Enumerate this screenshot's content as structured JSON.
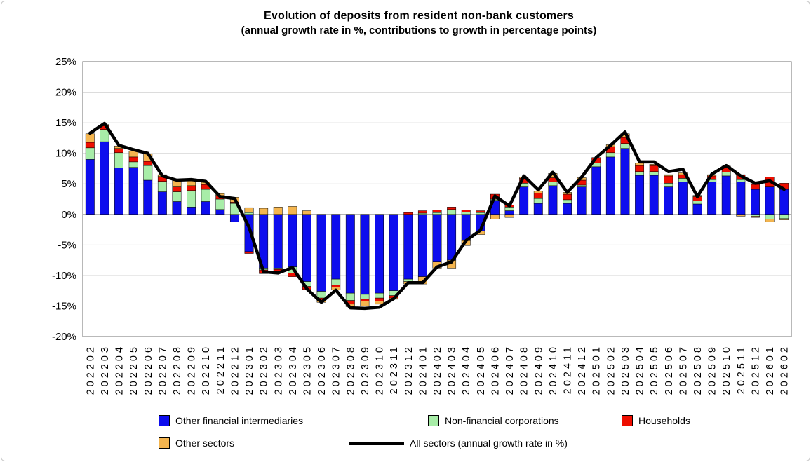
{
  "page": {
    "background": "#ffffff",
    "border_color": "#c9c9c9"
  },
  "chart_data": {
    "type": "bar",
    "stacked": true,
    "title": "Evolution of deposits from resident non-bank customers",
    "subtitle": "(annual growth rate in %, contributions to growth in percentage points)",
    "ylim": [
      -20,
      25
    ],
    "ytick_step": 5,
    "ytick_labels": [
      "25%",
      "20%",
      "15%",
      "10%",
      "5%",
      "0%",
      "-5%",
      "-10%",
      "-15%",
      "-20%"
    ],
    "grid": true,
    "legend_position": "bottom",
    "categories": [
      "202202",
      "202203",
      "202204",
      "202205",
      "202206",
      "202207",
      "202208",
      "202209",
      "202210",
      "202211",
      "202212",
      "202301",
      "202302",
      "202303",
      "202304",
      "202305",
      "202306",
      "202307",
      "202308",
      "202309",
      "202310",
      "202311",
      "202312",
      "202401",
      "202402",
      "202403",
      "202404",
      "202405",
      "202406",
      "202407",
      "202408",
      "202409",
      "202410",
      "202411",
      "202412",
      "202501",
      "202502",
      "202503",
      "202504",
      "202505",
      "202506",
      "202507",
      "202508",
      "202509",
      "202510",
      "202511",
      "202512",
      "202601",
      "202602"
    ],
    "series": [
      {
        "name": "Other financial intermediaries",
        "color": "#0D0DEE",
        "values": [
          9.0,
          11.9,
          7.6,
          7.7,
          5.6,
          3.7,
          2.1,
          1.2,
          2.1,
          0.8,
          -1.2,
          -6.1,
          -8.8,
          -8.8,
          -8.6,
          -11.0,
          -12.6,
          -10.6,
          -12.9,
          -13.1,
          -12.9,
          -12.5,
          -10.6,
          -10.2,
          -7.8,
          -7.5,
          -4.3,
          -2.7,
          2.3,
          0.6,
          4.5,
          1.8,
          4.7,
          1.8,
          4.5,
          7.8,
          9.4,
          10.8,
          6.4,
          6.4,
          4.5,
          5.3,
          1.7,
          5.3,
          6.3,
          5.3,
          4.1,
          4.5,
          4.1
        ]
      },
      {
        "name": "Non-financial corporations",
        "color": "#A8EDA8",
        "values": [
          1.9,
          2.0,
          2.5,
          0.9,
          2.4,
          1.7,
          1.6,
          2.7,
          2.0,
          1.7,
          1.8,
          0.3,
          -0.3,
          -0.2,
          -1.0,
          -0.8,
          -1.1,
          -1.0,
          -1.2,
          -0.8,
          -0.8,
          -0.8,
          -0.4,
          0.2,
          0.3,
          0.8,
          0.4,
          0.3,
          0.2,
          0.6,
          0.6,
          0.8,
          0.6,
          0.6,
          0.3,
          0.6,
          0.7,
          0.8,
          0.6,
          0.6,
          0.6,
          0.6,
          0.5,
          0.4,
          0.6,
          0.4,
          -0.3,
          -0.8,
          -0.7
        ]
      },
      {
        "name": "Households",
        "color": "#EE0E00",
        "values": [
          0.9,
          0.6,
          0.7,
          0.8,
          0.7,
          0.8,
          0.8,
          0.8,
          0.8,
          0.6,
          0.2,
          -0.3,
          -0.6,
          -0.6,
          -0.6,
          -0.5,
          -0.4,
          -0.3,
          -0.6,
          -0.3,
          -0.5,
          -0.4,
          0.3,
          0.4,
          0.4,
          0.4,
          0.3,
          0.3,
          0.8,
          0.3,
          0.8,
          0.9,
          0.7,
          0.9,
          0.8,
          0.9,
          1.0,
          1.0,
          1.0,
          1.0,
          1.2,
          0.6,
          0.7,
          0.6,
          0.8,
          0.8,
          0.8,
          1.6,
          1.0
        ]
      },
      {
        "name": "Other sectors",
        "color": "#F4B54F",
        "values": [
          1.4,
          0.2,
          0.4,
          1.0,
          1.2,
          0.3,
          1.2,
          0.8,
          0.4,
          0.3,
          0.8,
          0.8,
          1.0,
          1.2,
          1.3,
          0.6,
          -0.3,
          -0.5,
          -0.4,
          -0.8,
          -0.5,
          -0.2,
          -0.4,
          -1.2,
          -1.0,
          -1.3,
          -0.8,
          -0.6,
          -0.8,
          -0.5,
          0.2,
          0.3,
          0.7,
          0.3,
          0.4,
          0.0,
          0.3,
          0.6,
          0.4,
          0.2,
          0.2,
          0.3,
          0.2,
          0.2,
          0.2,
          -0.3,
          -0.2,
          -0.4,
          -0.2
        ]
      }
    ],
    "line": {
      "name": "All sectors (annual growth rate in %)",
      "color": "#000000",
      "values": [
        13.3,
        14.9,
        11.3,
        10.6,
        10.0,
        6.3,
        5.6,
        5.7,
        5.4,
        2.9,
        2.6,
        -2.1,
        -9.4,
        -9.6,
        -8.7,
        -12.2,
        -14.4,
        -12.4,
        -15.3,
        -15.4,
        -15.2,
        -13.8,
        -11.2,
        -11.2,
        -8.6,
        -7.8,
        -4.3,
        -2.6,
        3.0,
        1.4,
        6.3,
        4.0,
        6.9,
        3.6,
        6.1,
        9.3,
        11.3,
        13.5,
        8.6,
        8.6,
        7.0,
        7.4,
        2.9,
        6.6,
        8.0,
        6.3,
        5.1,
        5.5,
        4.1
      ]
    }
  }
}
